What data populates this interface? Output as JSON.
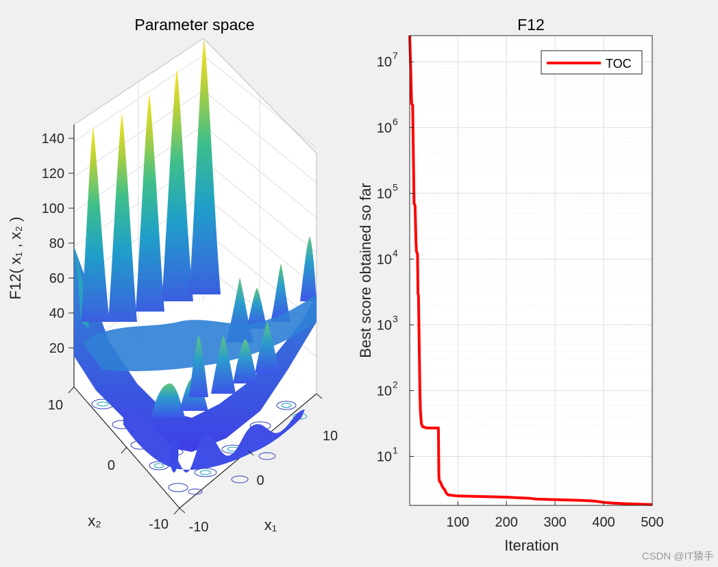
{
  "chart_data": [
    {
      "type": "surface3d",
      "title": "Parameter space",
      "zlabel": "F12( x₁ , x₂ )",
      "xlabel": "x₁",
      "ylabel": "x₂",
      "x_ticks": [
        "-10",
        "0",
        "10"
      ],
      "y_ticks": [
        "-10",
        "0",
        "10"
      ],
      "z_ticks": [
        "20",
        "40",
        "60",
        "80",
        "100",
        "120",
        "140"
      ],
      "zlim": [
        0,
        150
      ],
      "xlim": [
        -10,
        10
      ],
      "ylim": [
        -10,
        10
      ]
    },
    {
      "type": "line",
      "title": "F12",
      "xlabel": "Iteration",
      "ylabel": "Best score obtained so far",
      "yscale": "log",
      "xlim": [
        1,
        500
      ],
      "ylim": [
        1.8,
        25000000
      ],
      "x_ticks": [
        "100",
        "200",
        "300",
        "400",
        "500"
      ],
      "y_ticks": [
        {
          "base": "10",
          "exp": "1",
          "value": 10
        },
        {
          "base": "10",
          "exp": "2",
          "value": 100
        },
        {
          "base": "10",
          "exp": "3",
          "value": 1000
        },
        {
          "base": "10",
          "exp": "4",
          "value": 10000
        },
        {
          "base": "10",
          "exp": "5",
          "value": 100000
        },
        {
          "base": "10",
          "exp": "6",
          "value": 1000000
        },
        {
          "base": "10",
          "exp": "7",
          "value": 10000000
        }
      ],
      "legend": {
        "location": "top-right",
        "entries": [
          "TOC"
        ]
      },
      "series": [
        {
          "name": "TOC",
          "color": "#ff0000",
          "x": [
            1,
            3,
            5,
            7,
            9,
            10,
            12,
            14,
            15,
            17,
            18,
            19,
            20,
            22,
            23,
            25,
            26,
            27,
            28,
            30,
            33,
            35,
            40,
            50,
            60,
            61,
            62,
            64,
            68,
            70,
            72,
            76,
            80,
            90,
            100,
            150,
            200,
            250,
            260,
            300,
            350,
            380,
            400,
            420,
            450,
            500
          ],
          "y": [
            25000000,
            8000000,
            2300000,
            2200000,
            220000,
            70000,
            65000,
            18000,
            13000,
            12000,
            3000,
            2800,
            900,
            100,
            50,
            32,
            30,
            29,
            28,
            28,
            27.5,
            27,
            27,
            27,
            27,
            5,
            4.2,
            4.1,
            3.5,
            3.3,
            3.2,
            2.8,
            2.6,
            2.55,
            2.5,
            2.45,
            2.4,
            2.3,
            2.25,
            2.2,
            2.15,
            2.1,
            2.0,
            1.95,
            1.9,
            1.85
          ]
        }
      ]
    }
  ],
  "watermark": "CSDN @IT猿手"
}
